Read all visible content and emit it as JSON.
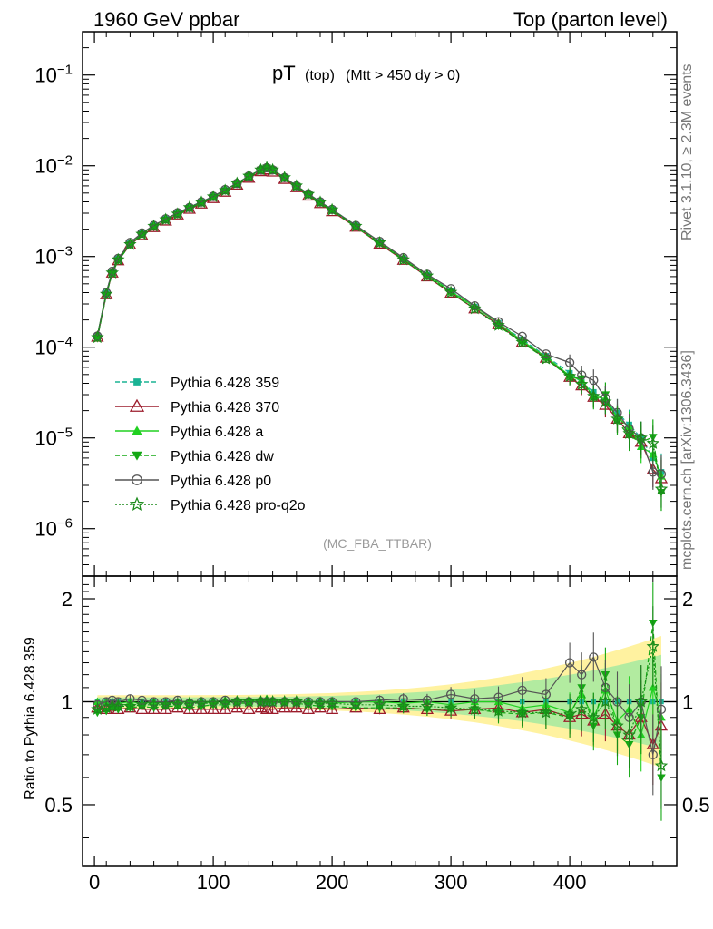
{
  "header": {
    "left": "1960 GeV ppbar",
    "right": "Top (parton level)"
  },
  "side": {
    "rivet": "Rivet 3.1.10, ≥ 2.3M events",
    "mcplots": "mcplots.cern.ch [arXiv:1306.3436]"
  },
  "chart_data": {
    "type": "line",
    "title_main": "pT",
    "title_sub1": "(top)",
    "title_sub2": "(Mtt > 450 dy > 0)",
    "analysis_label": "(MC_FBA_TTBAR)",
    "ylabel_ratio": "Ratio to Pythia 6.428 359",
    "xlim": [
      -10,
      490
    ],
    "ylim_log": [
      3e-07,
      0.3
    ],
    "ylim_ratio": [
      0.33,
      2.33
    ],
    "x_ticks": [
      "0",
      "100",
      "200",
      "300",
      "400"
    ],
    "y_ticks_main": [
      "10^-1",
      "10^-2",
      "10^-3",
      "10^-4",
      "10^-5",
      "10^-6"
    ],
    "y_ticks_ratio": [
      "2",
      "1",
      "0.5"
    ],
    "legend": [
      "Pythia 6.428 359",
      "Pythia 6.428 370",
      "Pythia 6.428 a",
      "Pythia 6.428 dw",
      "Pythia 6.428 p0",
      "Pythia 6.428 pro-q2o"
    ],
    "colors": [
      "#1ab394",
      "#9c1c2c",
      "#20d020",
      "#14a814",
      "#555555",
      "#1a8a1a"
    ],
    "x": [
      2.5,
      10,
      15,
      20,
      30,
      40,
      50,
      60,
      70,
      80,
      90,
      100,
      110,
      120,
      130,
      140,
      145,
      150,
      160,
      170,
      180,
      190,
      200,
      220,
      240,
      260,
      280,
      300,
      320,
      340,
      360,
      380,
      400,
      410,
      420,
      430,
      440,
      450,
      460,
      470,
      477
    ],
    "reference_values": [
      0.000135,
      0.0004,
      0.00068,
      0.00095,
      0.0014,
      0.0018,
      0.0022,
      0.0026,
      0.003,
      0.0035,
      0.004,
      0.0046,
      0.0054,
      0.0064,
      0.0077,
      0.009,
      0.0095,
      0.009,
      0.0074,
      0.006,
      0.0049,
      0.004,
      0.0033,
      0.0022,
      0.00145,
      0.00095,
      0.00063,
      0.00042,
      0.00028,
      0.000185,
      0.000122,
      8e-05,
      5.2e-05,
      4.1e-05,
      3.2e-05,
      2.5e-05,
      1.9e-05,
      1.4e-05,
      1e-05,
      6e-06,
      4.2e-06
    ],
    "ratio_series": [
      {
        "name": "Pythia 6.428 370",
        "values": [
          0.96,
          0.95,
          0.97,
          0.95,
          0.96,
          0.95,
          0.95,
          0.95,
          0.96,
          0.95,
          0.95,
          0.95,
          0.95,
          0.96,
          0.95,
          0.96,
          0.95,
          0.95,
          0.96,
          0.96,
          0.95,
          0.96,
          0.95,
          0.96,
          0.95,
          0.96,
          0.95,
          0.94,
          0.95,
          0.96,
          0.93,
          0.95,
          0.9,
          0.92,
          0.88,
          0.92,
          0.85,
          0.8,
          0.9,
          0.75,
          0.85
        ]
      },
      {
        "name": "Pythia 6.428 a",
        "values": [
          1.0,
          1.0,
          0.98,
          0.99,
          1.0,
          0.99,
          1.0,
          0.99,
          1.0,
          1.0,
          0.99,
          1.0,
          1.01,
          1.0,
          1.0,
          1.01,
          1.02,
          1.01,
          1.0,
          1.0,
          1.0,
          1.0,
          0.99,
          1.0,
          1.0,
          0.99,
          1.0,
          0.98,
          1.0,
          1.0,
          0.96,
          0.98,
          0.93,
          1.05,
          0.9,
          1.08,
          0.88,
          0.95,
          0.8,
          1.1,
          0.9
        ]
      },
      {
        "name": "Pythia 6.428 dw",
        "values": [
          0.93,
          0.94,
          0.96,
          0.95,
          0.96,
          0.97,
          0.96,
          0.97,
          0.97,
          0.96,
          0.97,
          0.98,
          0.98,
          0.99,
          0.99,
          1.0,
          1.0,
          1.0,
          0.99,
          0.99,
          0.98,
          0.97,
          0.97,
          0.96,
          0.96,
          0.96,
          0.95,
          0.95,
          0.95,
          0.93,
          0.92,
          0.93,
          0.9,
          1.1,
          0.85,
          1.2,
          0.8,
          0.75,
          0.9,
          1.7,
          0.6
        ]
      },
      {
        "name": "Pythia 6.428 p0",
        "values": [
          0.98,
          1.0,
          1.01,
          1.0,
          1.02,
          1.01,
          1.0,
          1.0,
          1.01,
          0.99,
          1.0,
          1.0,
          1.01,
          1.0,
          1.0,
          1.0,
          1.0,
          1.0,
          1.0,
          1.0,
          1.0,
          1.0,
          1.0,
          1.0,
          1.01,
          1.02,
          1.01,
          1.05,
          1.02,
          1.03,
          1.08,
          1.05,
          1.3,
          1.2,
          1.35,
          1.1,
          1.0,
          0.9,
          1.0,
          0.7,
          0.95
        ]
      },
      {
        "name": "Pythia 6.428 pro-q2o",
        "values": [
          0.95,
          0.96,
          0.97,
          0.97,
          0.97,
          0.98,
          0.98,
          0.98,
          0.98,
          0.99,
          0.99,
          0.99,
          0.99,
          1.0,
          1.0,
          1.0,
          1.0,
          1.0,
          1.0,
          1.0,
          0.99,
          0.99,
          0.99,
          0.98,
          0.98,
          0.97,
          0.97,
          0.96,
          0.95,
          0.94,
          0.93,
          0.93,
          0.92,
          0.95,
          0.9,
          1.0,
          0.85,
          0.8,
          1.0,
          1.45,
          0.65
        ]
      }
    ]
  }
}
